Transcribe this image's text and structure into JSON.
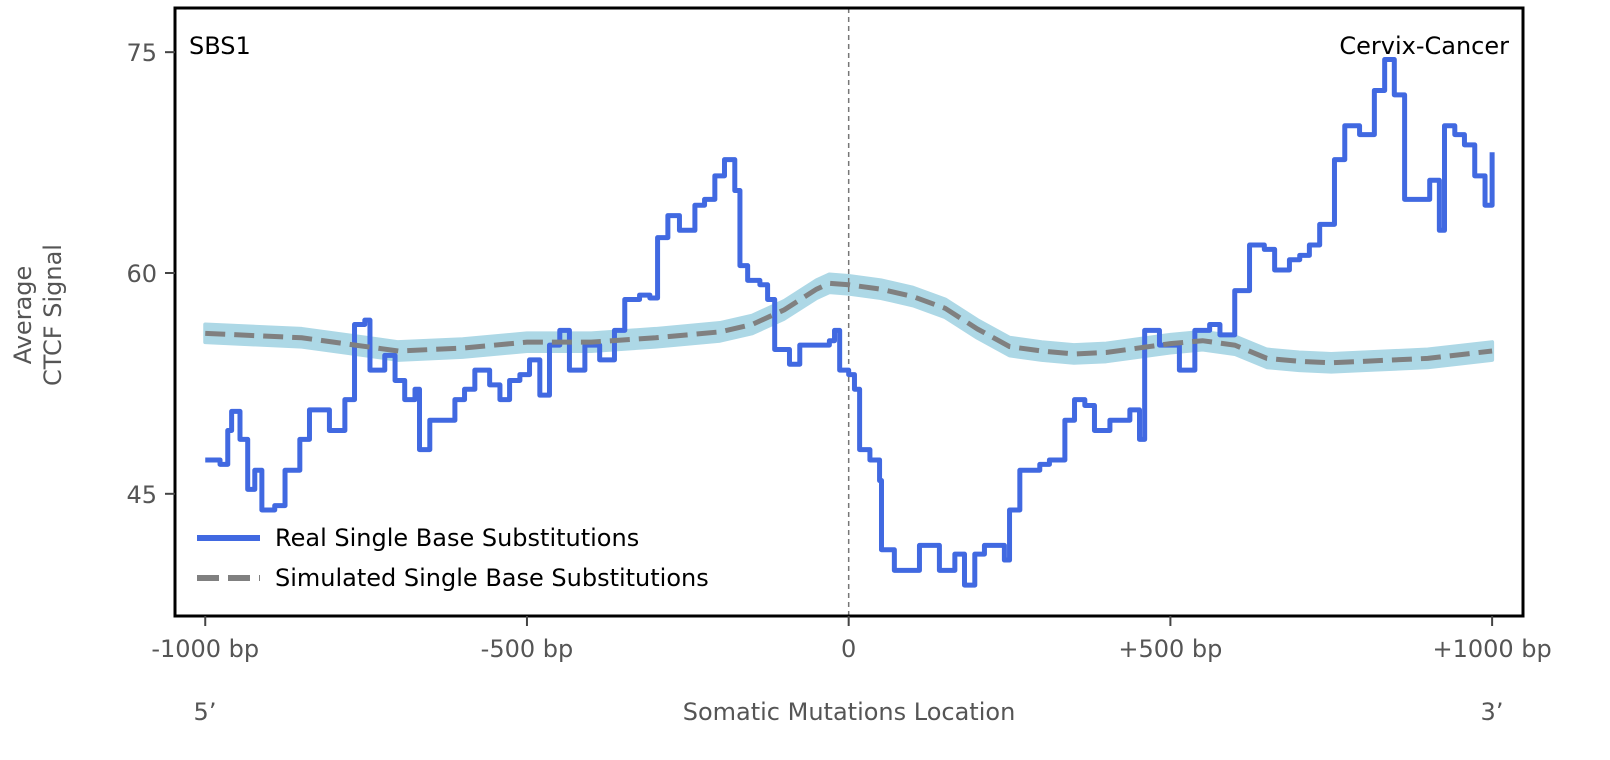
{
  "chart_data": {
    "type": "line",
    "title": "",
    "top_left_label": "SBS1",
    "top_right_label": "Cervix-Cancer",
    "xlabel": "Somatic Mutations Location",
    "ylabel_lines": [
      "Average",
      "CTCF Signal"
    ],
    "x_end_labels": {
      "left": "5’",
      "right": "3’"
    },
    "xlim": [
      -1047,
      1048
    ],
    "ylim": [
      36.7,
      78.0
    ],
    "xticks": [
      {
        "value": -1000,
        "label": "-1000 bp"
      },
      {
        "value": -500,
        "label": "-500 bp"
      },
      {
        "value": 0,
        "label": "0"
      },
      {
        "value": 500,
        "label": "+500 bp"
      },
      {
        "value": 1000,
        "label": "+1000 bp"
      }
    ],
    "yticks": [
      {
        "value": 45,
        "label": "45"
      },
      {
        "value": 60,
        "label": "60"
      },
      {
        "value": 75,
        "label": "75"
      }
    ],
    "center_line": 0,
    "grid": false,
    "legend_position": "lower-left",
    "series": [
      {
        "name": "Real Single Base Substitutions",
        "color": "#4169e1",
        "style": "solid",
        "x": [
          -1000,
          -977,
          -965,
          -959,
          -946,
          -934,
          -923,
          -912,
          -892,
          -876,
          -853,
          -838,
          -807,
          -783,
          -768,
          -752,
          -744,
          -721,
          -705,
          -690,
          -674,
          -667,
          -651,
          -628,
          -612,
          -597,
          -581,
          -558,
          -542,
          -527,
          -511,
          -496,
          -480,
          -465,
          -449,
          -434,
          -410,
          -387,
          -364,
          -348,
          -325,
          -309,
          -297,
          -281,
          -263,
          -239,
          -224,
          -208,
          -193,
          -177,
          -169,
          -157,
          -138,
          -126,
          -115,
          -92,
          -76,
          -61,
          -30,
          -22,
          -14,
          0,
          9,
          17,
          33,
          48,
          51,
          71,
          95,
          110,
          126,
          141,
          165,
          180,
          196,
          211,
          235,
          242,
          250,
          266,
          297,
          312,
          336,
          351,
          367,
          382,
          406,
          437,
          452,
          460,
          483,
          514,
          538,
          561,
          577,
          600,
          623,
          646,
          662,
          685,
          701,
          716,
          732,
          755,
          771,
          794,
          817,
          833,
          848,
          864,
          887,
          903,
          918,
          926,
          942,
          957,
          973,
          989,
          1000
        ],
        "y": [
          47.3,
          47.0,
          49.3,
          50.6,
          48.7,
          45.3,
          46.6,
          43.9,
          44.2,
          46.6,
          48.7,
          50.7,
          49.3,
          51.4,
          56.5,
          56.8,
          53.4,
          54.4,
          52.7,
          51.4,
          52.1,
          48.0,
          50.0,
          50.0,
          51.4,
          52.1,
          53.4,
          52.4,
          51.4,
          52.7,
          53.1,
          54.1,
          51.7,
          55.1,
          56.1,
          53.4,
          55.1,
          54.1,
          56.1,
          58.2,
          58.5,
          58.3,
          62.4,
          63.9,
          62.9,
          64.6,
          65.0,
          66.6,
          67.7,
          65.6,
          60.5,
          59.5,
          59.2,
          58.2,
          54.8,
          53.8,
          55.1,
          55.1,
          55.4,
          56.1,
          53.4,
          53.1,
          52.1,
          48.0,
          47.3,
          45.9,
          41.2,
          39.8,
          39.8,
          41.5,
          41.5,
          39.8,
          40.9,
          38.8,
          40.9,
          41.5,
          41.5,
          40.5,
          43.9,
          46.6,
          47.0,
          47.3,
          50.0,
          51.4,
          51.0,
          49.3,
          50.0,
          50.7,
          48.7,
          56.1,
          55.1,
          53.4,
          56.1,
          56.5,
          55.8,
          58.8,
          61.9,
          61.6,
          60.2,
          60.9,
          61.2,
          61.9,
          63.3,
          67.7,
          70.0,
          69.4,
          72.4,
          74.5,
          72.1,
          65.0,
          65.0,
          66.3,
          62.9,
          70.0,
          69.4,
          68.7,
          66.6,
          64.6,
          68.2
        ]
      },
      {
        "name": "Simulated Single Base Substitutions",
        "color": "#808080",
        "band_color": "#add8e6",
        "band_halfwidth": 0.6,
        "style": "dashed",
        "x": [
          -1000,
          -850,
          -700,
          -600,
          -500,
          -400,
          -300,
          -200,
          -150,
          -100,
          -50,
          -30,
          0,
          50,
          100,
          150,
          200,
          250,
          300,
          350,
          400,
          500,
          550,
          600,
          650,
          700,
          750,
          800,
          900,
          1000
        ],
        "y": [
          55.9,
          55.6,
          54.7,
          54.9,
          55.3,
          55.3,
          55.6,
          56.0,
          56.5,
          57.5,
          58.9,
          59.3,
          59.2,
          58.9,
          58.4,
          57.6,
          56.2,
          55.0,
          54.7,
          54.5,
          54.6,
          55.2,
          55.4,
          55.1,
          54.2,
          54.0,
          53.9,
          54.0,
          54.2,
          54.7
        ]
      }
    ]
  }
}
